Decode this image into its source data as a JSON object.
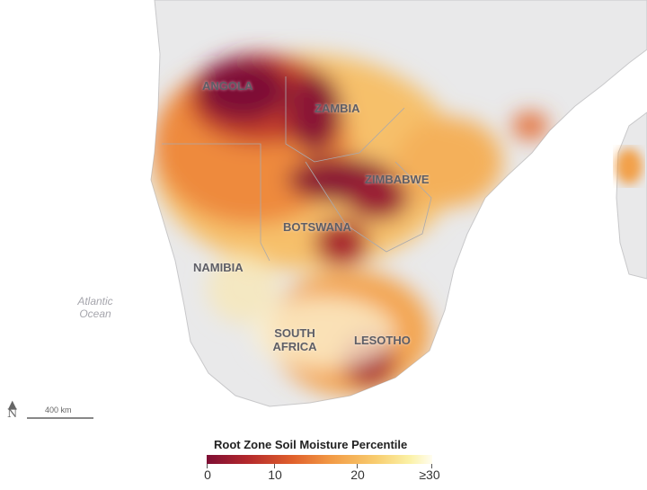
{
  "map": {
    "countries": [
      "ANGOLA",
      "ZAMBIA",
      "ZIMBABWE",
      "BOTSWANA",
      "NAMIBIA",
      "SOUTH AFRICA",
      "LESOTHO"
    ],
    "ocean": "Atlantic Ocean",
    "scale": "400 km",
    "north_symbol": "N"
  },
  "legend": {
    "title": "Root Zone Soil Moisture Percentile",
    "ticks": [
      "0",
      "10",
      "20",
      "≥30"
    ],
    "colors": {
      "low": "#7e0e34",
      "mid": "#e0602c",
      "high": "#fffdf0"
    }
  }
}
